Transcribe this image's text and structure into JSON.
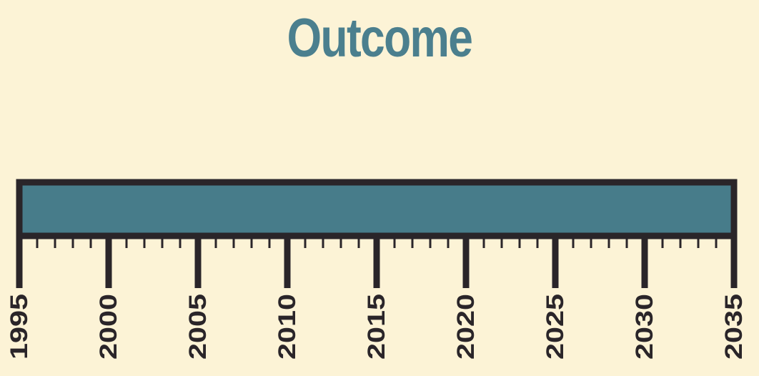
{
  "title": "Outcome",
  "colors": {
    "background": "#fcf3d6",
    "title": "#4b7f8e",
    "bar_fill": "#477c8a",
    "bar_outline": "#2a2529",
    "ticks": "#2a2529"
  },
  "chart_data": {
    "type": "bar",
    "orientation": "horizontal",
    "title": "Outcome",
    "xlabel": "",
    "ylabel": "",
    "xlim": [
      1995,
      2035
    ],
    "major_tick_step": 5,
    "minor_tick_step": 1,
    "tick_labels": [
      "1995",
      "2000",
      "2005",
      "2010",
      "2015",
      "2020",
      "2025",
      "2030",
      "2035"
    ],
    "series": [
      {
        "start": 1995,
        "end": 2035
      }
    ],
    "grid": false
  }
}
